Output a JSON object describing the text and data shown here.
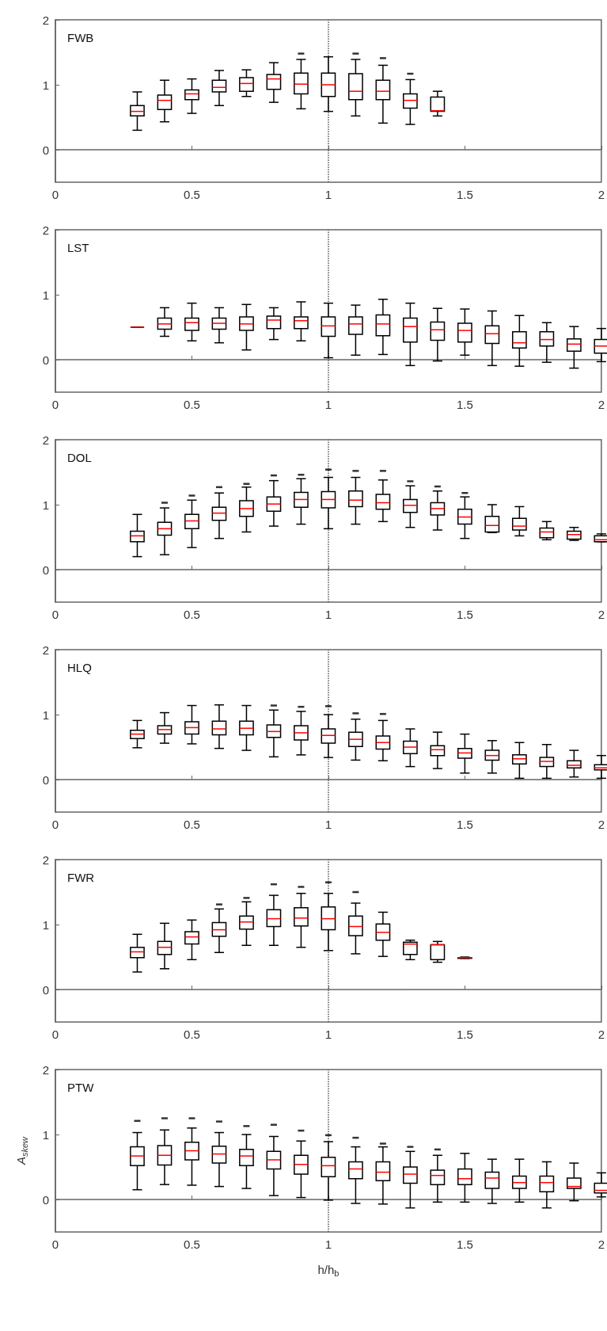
{
  "chart_data": [
    {
      "type": "box",
      "title": "FWB",
      "xlim": [
        0,
        2
      ],
      "ylim": [
        -0.5,
        2
      ],
      "xticks": [
        0,
        0.5,
        1,
        1.5,
        2
      ],
      "yticks": [
        0,
        1,
        2
      ],
      "grid": false,
      "ref_lines": [
        {
          "axis": "x",
          "value": 1,
          "line_style": "dotted",
          "color": "#555555"
        }
      ],
      "x": [
        0.3,
        0.4,
        0.5,
        0.6,
        0.7,
        0.8,
        0.9,
        1.0,
        1.1,
        1.2,
        1.3,
        1.4
      ],
      "series": [
        {
          "color": "#000000",
          "boxes": [
            {
              "low": 0.3,
              "q1": 0.52,
              "median": 0.59,
              "q3": 0.68,
              "high": 0.89
            },
            {
              "low": 0.43,
              "q1": 0.62,
              "median": 0.76,
              "q3": 0.84,
              "high": 1.07
            },
            {
              "low": 0.56,
              "q1": 0.77,
              "median": 0.86,
              "q3": 0.92,
              "high": 1.09
            },
            {
              "low": 0.68,
              "q1": 0.89,
              "median": 0.96,
              "q3": 1.07,
              "high": 1.22
            },
            {
              "low": 0.82,
              "q1": 0.9,
              "median": 1.02,
              "q3": 1.11,
              "high": 1.23
            },
            {
              "low": 0.73,
              "q1": 0.93,
              "median": 1.09,
              "q3": 1.16,
              "high": 1.34
            },
            {
              "low": 0.63,
              "q1": 0.86,
              "median": 1.01,
              "q3": 1.18,
              "high": 1.39,
              "outliers": [
                1.48
              ]
            },
            {
              "low": 0.59,
              "q1": 0.82,
              "median": 1.0,
              "q3": 1.18,
              "high": 1.43
            },
            {
              "low": 0.52,
              "q1": 0.77,
              "median": 0.9,
              "q3": 1.17,
              "high": 1.39,
              "outliers": [
                1.48
              ]
            },
            {
              "low": 0.41,
              "q1": 0.77,
              "median": 0.9,
              "q3": 1.07,
              "high": 1.3,
              "outliers": [
                1.41
              ]
            },
            {
              "low": 0.39,
              "q1": 0.64,
              "median": 0.76,
              "q3": 0.86,
              "high": 1.08,
              "outliers": [
                1.17
              ]
            },
            {
              "low": 0.52,
              "q1": 0.59,
              "median": 0.6,
              "q3": 0.81,
              "high": 0.9
            }
          ]
        }
      ]
    },
    {
      "type": "box",
      "title": "LST",
      "xlim": [
        0,
        2
      ],
      "ylim": [
        -0.5,
        2
      ],
      "xticks": [
        0,
        0.5,
        1,
        1.5,
        2
      ],
      "yticks": [
        0,
        1,
        2
      ],
      "grid": false,
      "ref_lines": [
        {
          "axis": "x",
          "value": 1,
          "line_style": "dotted",
          "color": "#555555"
        }
      ],
      "x": [
        0.3,
        0.4,
        0.5,
        0.6,
        0.7,
        0.8,
        0.9,
        1.0,
        1.1,
        1.2,
        1.3,
        1.4,
        1.5,
        1.6,
        1.7,
        1.8,
        1.9,
        2.0
      ],
      "series": [
        {
          "color": "#000000",
          "boxes": [
            {
              "low": 0.5,
              "q1": 0.5,
              "median": 0.5,
              "q3": 0.5,
              "high": 0.5
            },
            {
              "low": 0.36,
              "q1": 0.47,
              "median": 0.55,
              "q3": 0.64,
              "high": 0.8
            },
            {
              "low": 0.29,
              "q1": 0.45,
              "median": 0.57,
              "q3": 0.64,
              "high": 0.87
            },
            {
              "low": 0.26,
              "q1": 0.47,
              "median": 0.56,
              "q3": 0.64,
              "high": 0.8
            },
            {
              "low": 0.15,
              "q1": 0.45,
              "median": 0.55,
              "q3": 0.66,
              "high": 0.85
            },
            {
              "low": 0.31,
              "q1": 0.48,
              "median": 0.61,
              "q3": 0.67,
              "high": 0.8
            },
            {
              "low": 0.29,
              "q1": 0.48,
              "median": 0.6,
              "q3": 0.66,
              "high": 0.89
            },
            {
              "low": 0.03,
              "q1": 0.36,
              "median": 0.52,
              "q3": 0.66,
              "high": 0.87
            },
            {
              "low": 0.07,
              "q1": 0.39,
              "median": 0.55,
              "q3": 0.66,
              "high": 0.84
            },
            {
              "low": 0.08,
              "q1": 0.37,
              "median": 0.55,
              "q3": 0.69,
              "high": 0.93
            },
            {
              "low": -0.09,
              "q1": 0.27,
              "median": 0.51,
              "q3": 0.64,
              "high": 0.87
            },
            {
              "low": -0.02,
              "q1": 0.3,
              "median": 0.46,
              "q3": 0.58,
              "high": 0.79
            },
            {
              "low": 0.07,
              "q1": 0.27,
              "median": 0.45,
              "q3": 0.56,
              "high": 0.78
            },
            {
              "low": -0.09,
              "q1": 0.25,
              "median": 0.4,
              "q3": 0.52,
              "high": 0.75
            },
            {
              "low": -0.1,
              "q1": 0.18,
              "median": 0.26,
              "q3": 0.43,
              "high": 0.68
            },
            {
              "low": -0.04,
              "q1": 0.21,
              "median": 0.31,
              "q3": 0.43,
              "high": 0.57
            },
            {
              "low": -0.13,
              "q1": 0.13,
              "median": 0.24,
              "q3": 0.32,
              "high": 0.51
            },
            {
              "low": -0.03,
              "q1": 0.1,
              "median": 0.21,
              "q3": 0.31,
              "high": 0.48
            }
          ]
        }
      ]
    },
    {
      "type": "box",
      "title": "DOL",
      "xlim": [
        0,
        2
      ],
      "ylim": [
        -0.5,
        2
      ],
      "xticks": [
        0,
        0.5,
        1,
        1.5,
        2
      ],
      "yticks": [
        0,
        1,
        2
      ],
      "grid": false,
      "ref_lines": [
        {
          "axis": "x",
          "value": 1,
          "line_style": "dotted",
          "color": "#555555"
        }
      ],
      "x": [
        0.3,
        0.4,
        0.5,
        0.6,
        0.7,
        0.8,
        0.9,
        1.0,
        1.1,
        1.2,
        1.3,
        1.4,
        1.5,
        1.6,
        1.7,
        1.8,
        1.9,
        2.0
      ],
      "series": [
        {
          "color": "#000000",
          "boxes": [
            {
              "low": 0.2,
              "q1": 0.43,
              "median": 0.52,
              "q3": 0.59,
              "high": 0.85
            },
            {
              "low": 0.23,
              "q1": 0.53,
              "median": 0.63,
              "q3": 0.73,
              "high": 0.95,
              "outliers": [
                1.03
              ]
            },
            {
              "low": 0.34,
              "q1": 0.63,
              "median": 0.75,
              "q3": 0.85,
              "high": 1.07,
              "outliers": [
                1.14
              ]
            },
            {
              "low": 0.48,
              "q1": 0.76,
              "median": 0.87,
              "q3": 0.96,
              "high": 1.18,
              "outliers": [
                1.27
              ]
            },
            {
              "low": 0.58,
              "q1": 0.82,
              "median": 0.94,
              "q3": 1.06,
              "high": 1.27,
              "outliers": [
                1.32
              ]
            },
            {
              "low": 0.67,
              "q1": 0.9,
              "median": 1.01,
              "q3": 1.12,
              "high": 1.37,
              "outliers": [
                1.45
              ]
            },
            {
              "low": 0.7,
              "q1": 0.96,
              "median": 1.08,
              "q3": 1.19,
              "high": 1.4,
              "outliers": [
                1.46
              ]
            },
            {
              "low": 0.63,
              "q1": 0.95,
              "median": 1.08,
              "q3": 1.2,
              "high": 1.42,
              "outliers": [
                1.54
              ]
            },
            {
              "low": 0.7,
              "q1": 0.97,
              "median": 1.07,
              "q3": 1.21,
              "high": 1.42,
              "outliers": [
                1.52
              ]
            },
            {
              "low": 0.74,
              "q1": 0.93,
              "median": 1.03,
              "q3": 1.16,
              "high": 1.38,
              "outliers": [
                1.52
              ]
            },
            {
              "low": 0.65,
              "q1": 0.88,
              "median": 0.99,
              "q3": 1.08,
              "high": 1.29,
              "outliers": [
                1.36
              ]
            },
            {
              "low": 0.61,
              "q1": 0.84,
              "median": 0.94,
              "q3": 1.03,
              "high": 1.21,
              "outliers": [
                1.28
              ]
            },
            {
              "low": 0.48,
              "q1": 0.7,
              "median": 0.81,
              "q3": 0.93,
              "high": 1.12,
              "outliers": [
                1.18
              ]
            },
            {
              "low": 0.57,
              "q1": 0.58,
              "median": 0.68,
              "q3": 0.82,
              "high": 1.0
            },
            {
              "low": 0.52,
              "q1": 0.61,
              "median": 0.67,
              "q3": 0.79,
              "high": 0.97
            },
            {
              "low": 0.46,
              "q1": 0.49,
              "median": 0.58,
              "q3": 0.64,
              "high": 0.74
            },
            {
              "low": 0.45,
              "q1": 0.47,
              "median": 0.54,
              "q3": 0.59,
              "high": 0.65
            },
            {
              "low": 0.43,
              "q1": 0.43,
              "median": 0.46,
              "q3": 0.52,
              "high": 0.55
            }
          ]
        }
      ]
    },
    {
      "type": "box",
      "title": "HLQ",
      "xlim": [
        0,
        2
      ],
      "ylim": [
        -0.5,
        2
      ],
      "xticks": [
        0,
        0.5,
        1,
        1.5,
        2
      ],
      "yticks": [
        0,
        1,
        2
      ],
      "grid": false,
      "ref_lines": [
        {
          "axis": "x",
          "value": 1,
          "line_style": "dotted",
          "color": "#555555"
        }
      ],
      "x": [
        0.3,
        0.4,
        0.5,
        0.6,
        0.7,
        0.8,
        0.9,
        1.0,
        1.1,
        1.2,
        1.3,
        1.4,
        1.5,
        1.6,
        1.7,
        1.8,
        1.9,
        2.0
      ],
      "series": [
        {
          "color": "#000000",
          "boxes": [
            {
              "low": 0.49,
              "q1": 0.63,
              "median": 0.7,
              "q3": 0.76,
              "high": 0.91
            },
            {
              "low": 0.56,
              "q1": 0.7,
              "median": 0.77,
              "q3": 0.83,
              "high": 1.03
            },
            {
              "low": 0.55,
              "q1": 0.7,
              "median": 0.8,
              "q3": 0.89,
              "high": 1.14
            },
            {
              "low": 0.48,
              "q1": 0.69,
              "median": 0.78,
              "q3": 0.9,
              "high": 1.15
            },
            {
              "low": 0.45,
              "q1": 0.69,
              "median": 0.79,
              "q3": 0.9,
              "high": 1.14
            },
            {
              "low": 0.35,
              "q1": 0.65,
              "median": 0.74,
              "q3": 0.84,
              "high": 1.07,
              "outliers": [
                1.14
              ]
            },
            {
              "low": 0.38,
              "q1": 0.61,
              "median": 0.72,
              "q3": 0.83,
              "high": 1.05,
              "outliers": [
                1.12
              ]
            },
            {
              "low": 0.34,
              "q1": 0.56,
              "median": 0.68,
              "q3": 0.78,
              "high": 1.0,
              "outliers": [
                1.13
              ]
            },
            {
              "low": 0.3,
              "q1": 0.51,
              "median": 0.62,
              "q3": 0.73,
              "high": 0.93,
              "outliers": [
                1.02
              ]
            },
            {
              "low": 0.29,
              "q1": 0.47,
              "median": 0.57,
              "q3": 0.67,
              "high": 0.91,
              "outliers": [
                1.01
              ]
            },
            {
              "low": 0.2,
              "q1": 0.4,
              "median": 0.5,
              "q3": 0.59,
              "high": 0.78
            },
            {
              "low": 0.17,
              "q1": 0.37,
              "median": 0.46,
              "q3": 0.52,
              "high": 0.73
            },
            {
              "low": 0.1,
              "q1": 0.33,
              "median": 0.41,
              "q3": 0.48,
              "high": 0.7
            },
            {
              "low": 0.1,
              "q1": 0.3,
              "median": 0.37,
              "q3": 0.45,
              "high": 0.6
            },
            {
              "low": 0.02,
              "q1": 0.24,
              "median": 0.32,
              "q3": 0.38,
              "high": 0.57
            },
            {
              "low": 0.02,
              "q1": 0.2,
              "median": 0.28,
              "q3": 0.34,
              "high": 0.54
            },
            {
              "low": 0.04,
              "q1": 0.18,
              "median": 0.22,
              "q3": 0.29,
              "high": 0.45
            },
            {
              "low": 0.02,
              "q1": 0.15,
              "median": 0.18,
              "q3": 0.23,
              "high": 0.37
            }
          ]
        }
      ]
    },
    {
      "type": "box",
      "title": "FWR",
      "xlim": [
        0,
        2
      ],
      "ylim": [
        -0.5,
        2
      ],
      "xticks": [
        0,
        0.5,
        1,
        1.5,
        2
      ],
      "yticks": [
        0,
        1,
        2
      ],
      "grid": false,
      "ref_lines": [
        {
          "axis": "x",
          "value": 1,
          "line_style": "dotted",
          "color": "#555555"
        }
      ],
      "x": [
        0.3,
        0.4,
        0.5,
        0.6,
        0.7,
        0.8,
        0.9,
        1.0,
        1.1,
        1.2,
        1.3,
        1.4,
        1.5
      ],
      "series": [
        {
          "color": "#000000",
          "boxes": [
            {
              "low": 0.27,
              "q1": 0.49,
              "median": 0.58,
              "q3": 0.65,
              "high": 0.85
            },
            {
              "low": 0.32,
              "q1": 0.54,
              "median": 0.65,
              "q3": 0.74,
              "high": 1.02
            },
            {
              "low": 0.46,
              "q1": 0.7,
              "median": 0.81,
              "q3": 0.89,
              "high": 1.07
            },
            {
              "low": 0.57,
              "q1": 0.82,
              "median": 0.92,
              "q3": 1.03,
              "high": 1.24,
              "outliers": [
                1.31
              ]
            },
            {
              "low": 0.68,
              "q1": 0.93,
              "median": 1.04,
              "q3": 1.13,
              "high": 1.35,
              "outliers": [
                1.41
              ]
            },
            {
              "low": 0.68,
              "q1": 0.97,
              "median": 1.09,
              "q3": 1.23,
              "high": 1.45,
              "outliers": [
                1.62
              ]
            },
            {
              "low": 0.65,
              "q1": 0.98,
              "median": 1.1,
              "q3": 1.26,
              "high": 1.48,
              "outliers": [
                1.58
              ]
            },
            {
              "low": 0.6,
              "q1": 0.92,
              "median": 1.09,
              "q3": 1.27,
              "high": 1.48,
              "outliers": [
                1.65
              ]
            },
            {
              "low": 0.55,
              "q1": 0.83,
              "median": 0.97,
              "q3": 1.13,
              "high": 1.33,
              "outliers": [
                1.5
              ]
            },
            {
              "low": 0.51,
              "q1": 0.76,
              "median": 0.88,
              "q3": 1.01,
              "high": 1.19
            },
            {
              "low": 0.46,
              "q1": 0.54,
              "median": 0.7,
              "q3": 0.73,
              "high": 0.76
            },
            {
              "low": 0.42,
              "q1": 0.46,
              "median": 0.69,
              "q3": 0.69,
              "high": 0.74
            },
            {
              "low": 0.48,
              "q1": 0.48,
              "median": 0.49,
              "q3": 0.49,
              "high": 0.5
            }
          ]
        }
      ]
    },
    {
      "type": "box",
      "title": "PTW",
      "xlabel": "h/h$_{b}$",
      "ylabel": "A$_{skew}$",
      "xlim": [
        0,
        2
      ],
      "ylim": [
        -0.5,
        2
      ],
      "xticks": [
        0,
        0.5,
        1,
        1.5,
        2
      ],
      "yticks": [
        0,
        1,
        2
      ],
      "grid": false,
      "ref_lines": [
        {
          "axis": "x",
          "value": 1,
          "line_style": "dotted",
          "color": "#555555"
        }
      ],
      "x": [
        0.3,
        0.4,
        0.5,
        0.6,
        0.7,
        0.8,
        0.9,
        1.0,
        1.1,
        1.2,
        1.3,
        1.4,
        1.5,
        1.6,
        1.7,
        1.8,
        1.9,
        2.0
      ],
      "series": [
        {
          "color": "#000000",
          "boxes": [
            {
              "low": 0.15,
              "q1": 0.52,
              "median": 0.67,
              "q3": 0.81,
              "high": 1.03,
              "outliers": [
                1.21
              ]
            },
            {
              "low": 0.23,
              "q1": 0.53,
              "median": 0.68,
              "q3": 0.83,
              "high": 1.07,
              "outliers": [
                1.25
              ]
            },
            {
              "low": 0.22,
              "q1": 0.61,
              "median": 0.75,
              "q3": 0.88,
              "high": 1.1,
              "outliers": [
                1.25
              ]
            },
            {
              "low": 0.2,
              "q1": 0.56,
              "median": 0.7,
              "q3": 0.82,
              "high": 1.03,
              "outliers": [
                1.2
              ]
            },
            {
              "low": 0.17,
              "q1": 0.52,
              "median": 0.67,
              "q3": 0.77,
              "high": 1.0,
              "outliers": [
                1.13
              ]
            },
            {
              "low": 0.06,
              "q1": 0.47,
              "median": 0.61,
              "q3": 0.74,
              "high": 0.97,
              "outliers": [
                1.15
              ]
            },
            {
              "low": 0.03,
              "q1": 0.39,
              "median": 0.54,
              "q3": 0.68,
              "high": 0.9,
              "outliers": [
                1.06
              ]
            },
            {
              "low": -0.01,
              "q1": 0.35,
              "median": 0.52,
              "q3": 0.65,
              "high": 0.89,
              "outliers": [
                0.99
              ]
            },
            {
              "low": -0.06,
              "q1": 0.32,
              "median": 0.47,
              "q3": 0.58,
              "high": 0.81,
              "outliers": [
                0.95
              ]
            },
            {
              "low": -0.07,
              "q1": 0.29,
              "median": 0.42,
              "q3": 0.58,
              "high": 0.81,
              "outliers": [
                0.86
              ]
            },
            {
              "low": -0.13,
              "q1": 0.25,
              "median": 0.39,
              "q3": 0.5,
              "high": 0.74,
              "outliers": [
                0.81
              ]
            },
            {
              "low": -0.04,
              "q1": 0.23,
              "median": 0.37,
              "q3": 0.45,
              "high": 0.68,
              "outliers": [
                0.77
              ]
            },
            {
              "low": -0.04,
              "q1": 0.23,
              "median": 0.32,
              "q3": 0.47,
              "high": 0.71
            },
            {
              "low": -0.06,
              "q1": 0.17,
              "median": 0.33,
              "q3": 0.42,
              "high": 0.62
            },
            {
              "low": -0.04,
              "q1": 0.17,
              "median": 0.26,
              "q3": 0.36,
              "high": 0.62
            },
            {
              "low": -0.13,
              "q1": 0.12,
              "median": 0.26,
              "q3": 0.36,
              "high": 0.58
            },
            {
              "low": -0.02,
              "q1": 0.17,
              "median": 0.2,
              "q3": 0.33,
              "high": 0.56
            },
            {
              "low": 0.04,
              "q1": 0.1,
              "median": 0.14,
              "q3": 0.25,
              "high": 0.41
            }
          ]
        }
      ]
    }
  ]
}
